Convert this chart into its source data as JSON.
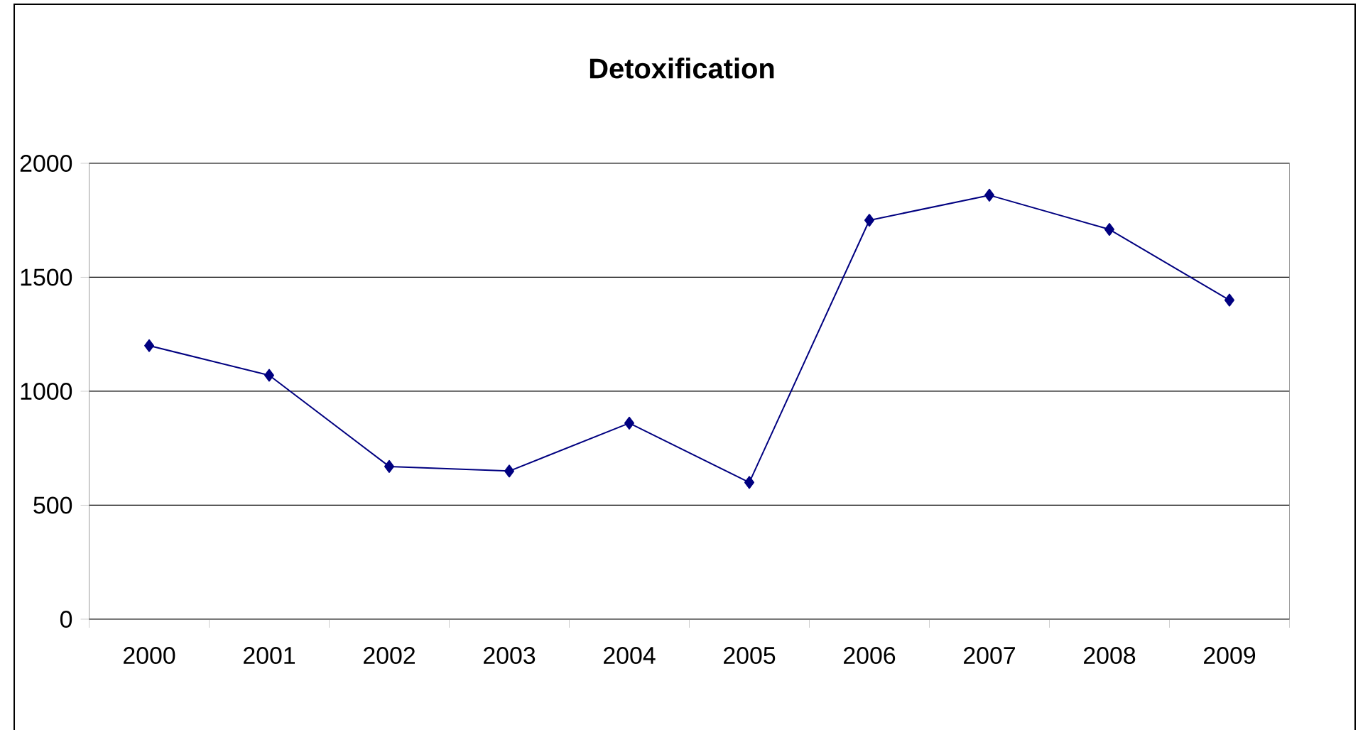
{
  "chart_data": {
    "type": "line",
    "title": "Detoxification",
    "categories": [
      "2000",
      "2001",
      "2002",
      "2003",
      "2004",
      "2005",
      "2006",
      "2007",
      "2008",
      "2009"
    ],
    "series": [
      {
        "color": "#000080",
        "values": [
          1200,
          1070,
          670,
          650,
          860,
          600,
          1750,
          1860,
          1710,
          1400
        ]
      }
    ],
    "ylim": [
      0,
      2000
    ],
    "yticks": [
      0,
      500,
      1000,
      1500,
      2000
    ],
    "grid": "y",
    "marker": "diamond"
  }
}
